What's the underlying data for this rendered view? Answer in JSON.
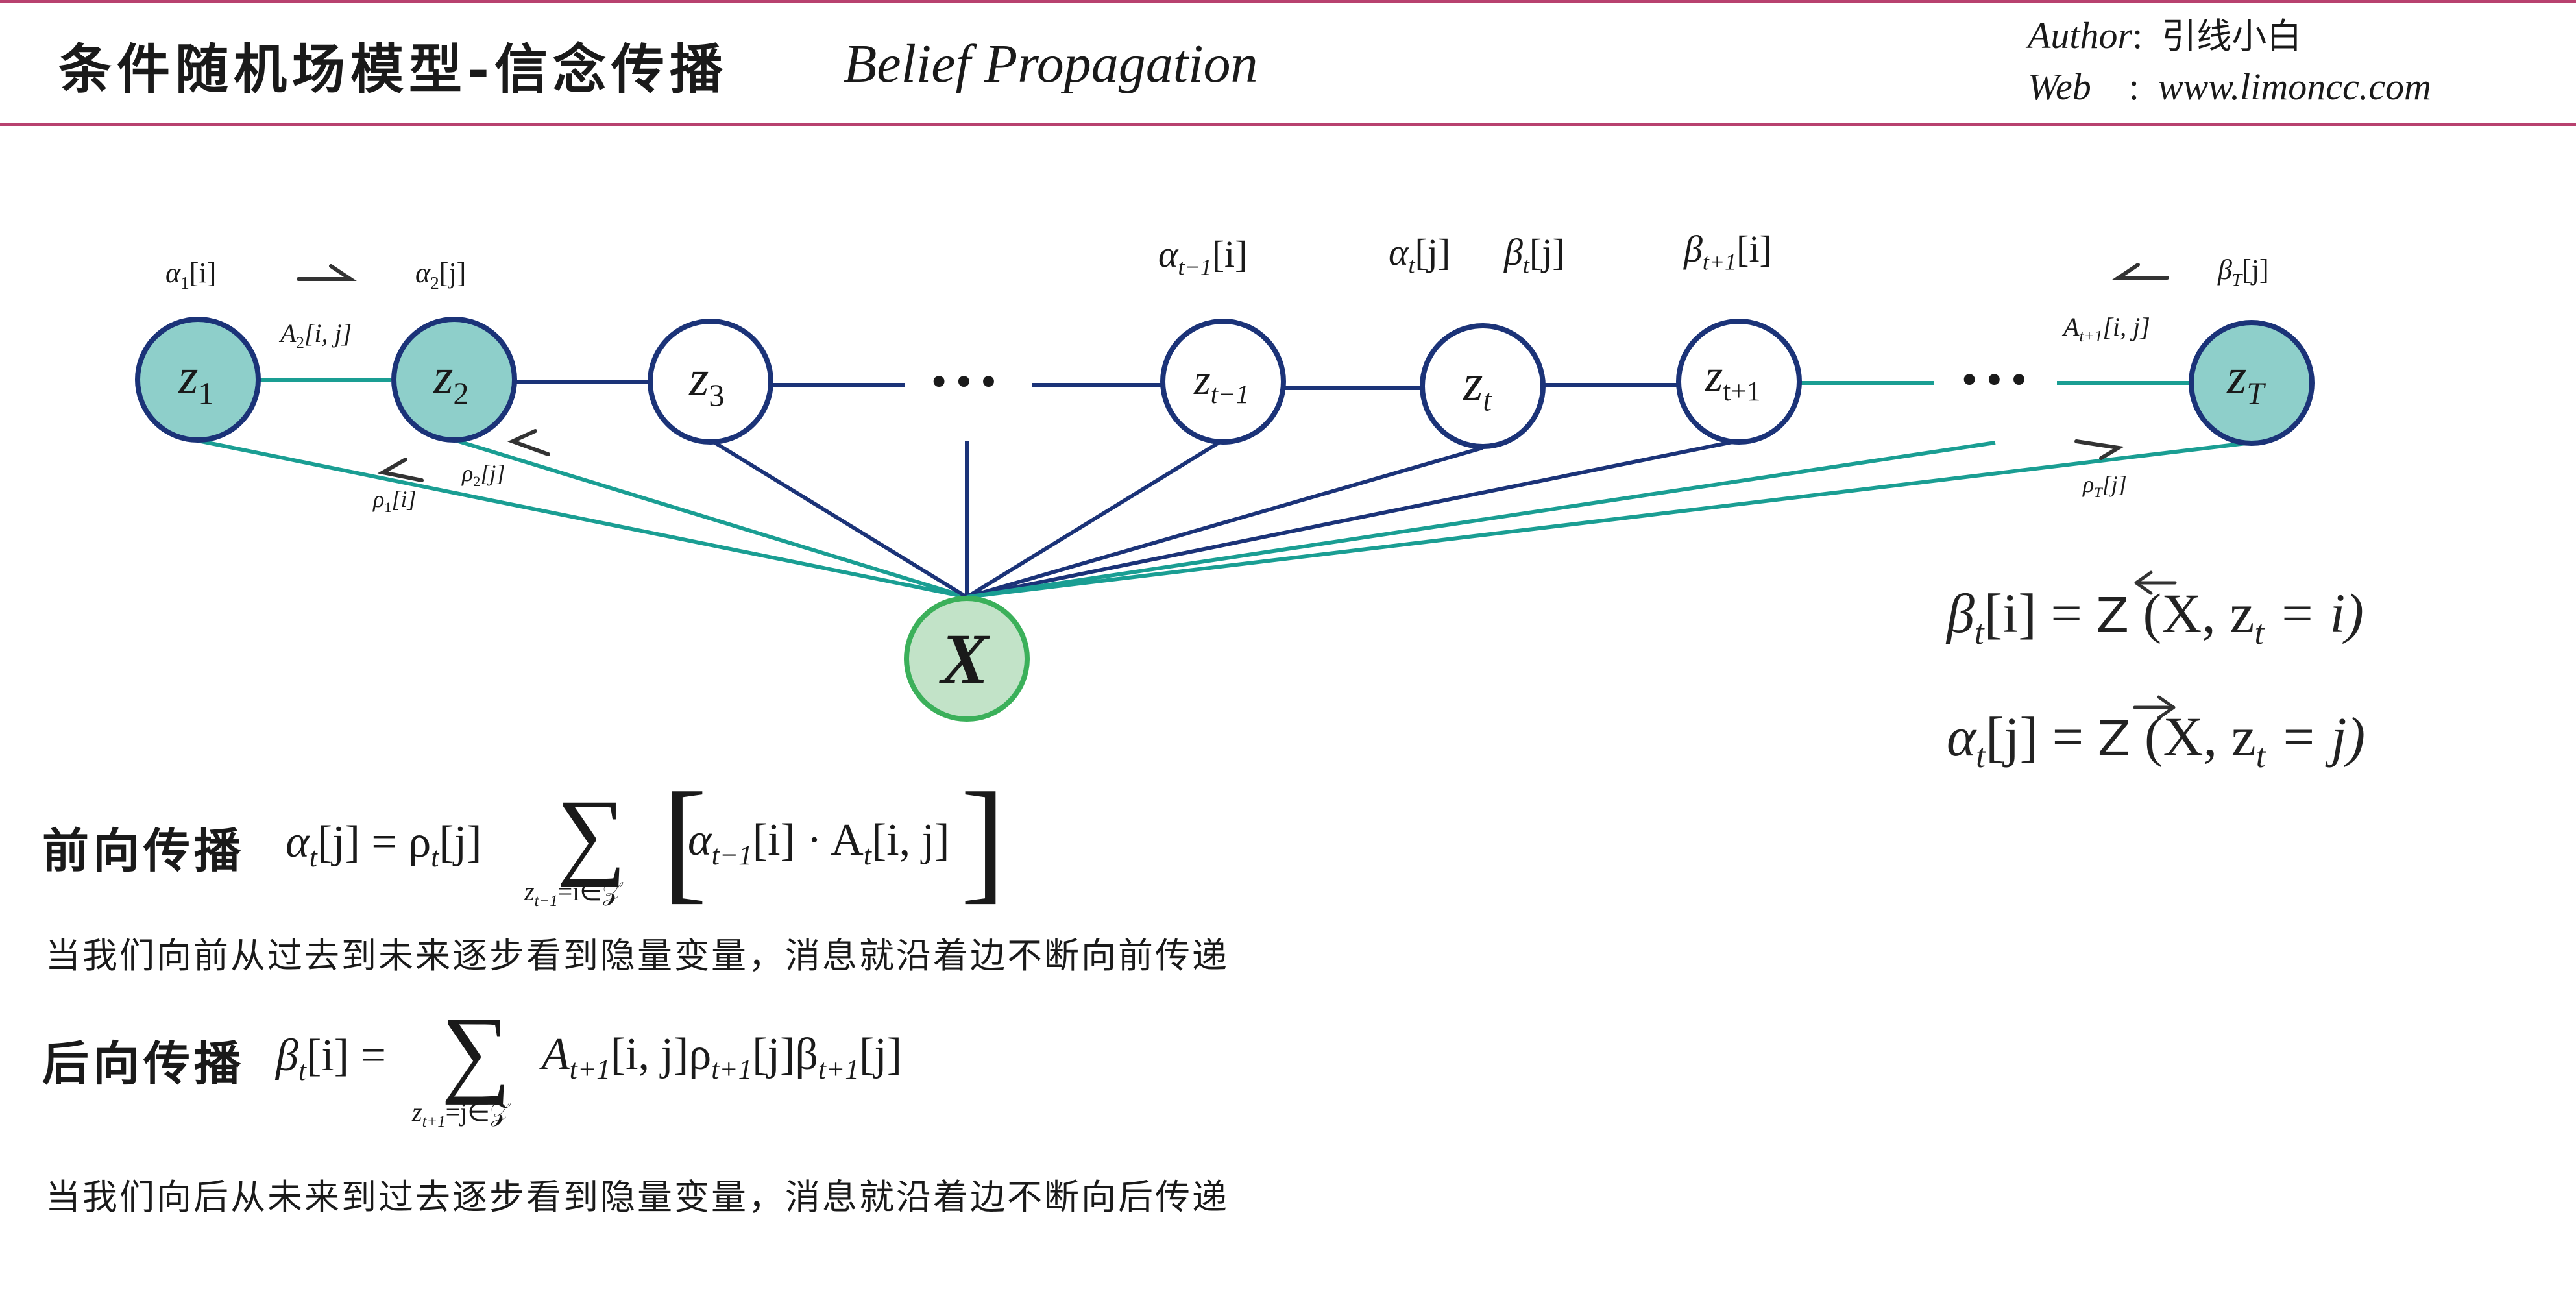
{
  "header": {
    "title_cn": "条件随机场模型-信念传播",
    "title_en": "Belief Propagation",
    "author_label": "Author",
    "author_value": "引线小白",
    "web_label": "Web",
    "web_value": "www.limoncc.com"
  },
  "colors": {
    "accent_rule": "#b8416f",
    "node_fill_observed": "#8ecfca",
    "node_border": "#1b3378",
    "edge_dark": "#1b3378",
    "edge_teal": "#1a9e93",
    "x_fill": "#c2e3c8",
    "x_border": "#3bb05a"
  },
  "diagram": {
    "nodes": {
      "z1": "z",
      "z1_sub": "1",
      "z2": "z",
      "z2_sub": "2",
      "z3": "z",
      "z3_sub": "3",
      "zt_minus": "z",
      "zt_minus_sub": "t−1",
      "zt": "z",
      "zt_sub": "t",
      "zt_plus": "z",
      "zt_plus_sub": "t+1",
      "zT": "z",
      "zT_sub": "T",
      "x": "X",
      "ellipsis_mid": "•••",
      "ellipsis_right": "•••"
    },
    "labels": {
      "alpha1": "α",
      "alpha1_sub": "1",
      "alpha1_idx": "[i]",
      "alpha2": "α",
      "alpha2_sub": "2",
      "alpha2_idx": "[j]",
      "A2": "A",
      "A2_sub": "2",
      "A2_idx": "[i, j]",
      "rho1": "ρ",
      "rho1_sub": "1",
      "rho1_idx": "[i]",
      "rho2": "ρ",
      "rho2_sub": "2",
      "rho2_idx": "[j]",
      "alpha_tm1": "α",
      "alpha_tm1_sub": "t−1",
      "alpha_tm1_idx": "[i]",
      "alpha_t": "α",
      "alpha_t_sub": "t",
      "alpha_t_idx": "[j]",
      "beta_t": "β",
      "beta_t_sub": "t",
      "beta_t_idx": "[j]",
      "beta_tp1": "β",
      "beta_tp1_sub": "t+1",
      "beta_tp1_idx": "[i]",
      "A_tp1": "A",
      "A_tp1_sub": "t+1",
      "A_tp1_idx": "[i, j]",
      "beta_T": "β",
      "beta_T_sub": "T",
      "beta_T_idx": "[j]",
      "rho_T": "ρ",
      "rho_T_sub": "T",
      "rho_T_idx": "[j]"
    },
    "equations": {
      "beta_lhs": "β",
      "beta_sub": "t",
      "beta_idx": "[i]",
      "beta_eq": "=",
      "beta_Z": "Z",
      "beta_rhs": "(X, z",
      "beta_rhs_sub": "t",
      "beta_rhs_tail": " = i)",
      "alpha_lhs": "α",
      "alpha_sub": "t",
      "alpha_idx": "[j]",
      "alpha_eq": "=",
      "alpha_Z": "Z",
      "alpha_rhs": "(X, z",
      "alpha_rhs_sub": "t",
      "alpha_rhs_tail": " = j)"
    }
  },
  "forward": {
    "heading": "前向传播",
    "lhs": "α",
    "lhs_sub": "t",
    "lhs_idx": "[j] = ρ",
    "rho_sub": "t",
    "rho_idx": "[j]",
    "sum_under": "z",
    "sum_under_sub": "t−1",
    "sum_under_tail": "=i∈𝒵",
    "inner": "α",
    "inner_sub": "t−1",
    "inner_idx": "[i] · A",
    "inner_A_sub": "t",
    "inner_A_idx": "[i, j]",
    "description": "当我们向前从过去到未来逐步看到隐量变量，消息就沿着边不断向前传递"
  },
  "backward": {
    "heading": "后向传播",
    "lhs": "β",
    "lhs_sub": "t",
    "lhs_idx": "[i] =",
    "sum_under": "z",
    "sum_under_sub": "t+1",
    "sum_under_tail": "=j∈𝒵",
    "term": "A",
    "term_sub": "t+1",
    "term_idx": "[i, j]ρ",
    "term_rho_sub": "t+1",
    "term_rho_idx": "[j]β",
    "term_beta_sub": "t+1",
    "term_beta_idx": "[j]",
    "description": "当我们向后从未来到过去逐步看到隐量变量，消息就沿着边不断向后传递"
  }
}
